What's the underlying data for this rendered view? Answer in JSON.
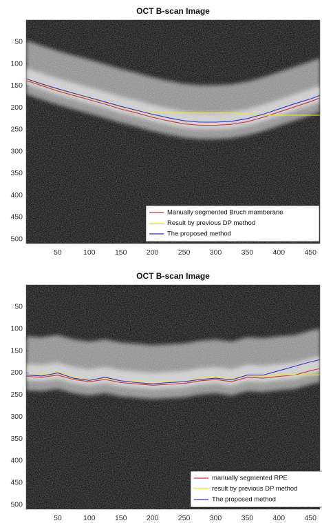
{
  "chart_data": [
    {
      "type": "line",
      "title": "OCT B-scan Image",
      "y_reversed": true,
      "x": [
        0,
        25,
        50,
        75,
        100,
        125,
        150,
        175,
        200,
        225,
        250,
        275,
        300,
        325,
        350,
        375,
        400,
        425,
        450,
        465
      ],
      "xlim": [
        0,
        465
      ],
      "ylim": [
        0,
        510
      ],
      "xticks": [
        50,
        100,
        150,
        200,
        250,
        300,
        350,
        400,
        450
      ],
      "yticks": [
        50,
        100,
        150,
        200,
        250,
        300,
        350,
        400,
        450,
        500
      ],
      "legend": "lower right",
      "series": [
        {
          "name": "Manually segmented Bruch mamberane",
          "color": "#d0303a",
          "values": [
            138,
            150,
            162,
            172,
            182,
            192,
            203,
            212,
            222,
            230,
            237,
            240,
            240,
            238,
            232,
            222,
            210,
            198,
            186,
            178
          ]
        },
        {
          "name": "Result by previous DP method",
          "color": "#e8e830",
          "values": [
            135,
            147,
            158,
            168,
            178,
            188,
            198,
            207,
            212,
            212,
            212,
            212,
            212,
            212,
            215,
            217,
            217,
            217,
            217,
            217
          ]
        },
        {
          "name": "The proposed method",
          "color": "#3030c8",
          "values": [
            134,
            146,
            157,
            167,
            177,
            187,
            197,
            206,
            215,
            223,
            230,
            233,
            233,
            231,
            225,
            215,
            203,
            191,
            180,
            172
          ]
        }
      ]
    },
    {
      "type": "line",
      "title": "OCT B-scan Image",
      "y_reversed": true,
      "x": [
        0,
        25,
        50,
        75,
        100,
        125,
        150,
        175,
        200,
        225,
        250,
        275,
        300,
        325,
        350,
        375,
        400,
        425,
        450,
        465
      ],
      "xlim": [
        0,
        465
      ],
      "ylim": [
        0,
        510
      ],
      "xticks": [
        50,
        100,
        150,
        200,
        250,
        300,
        350,
        400,
        450
      ],
      "yticks": [
        50,
        100,
        150,
        200,
        250,
        300,
        350,
        400,
        450,
        500
      ],
      "legend": "lower right",
      "series": [
        {
          "name": "manually segmented RPE",
          "color": "#d0303a",
          "values": [
            208,
            210,
            205,
            215,
            220,
            215,
            222,
            225,
            228,
            226,
            224,
            218,
            215,
            220,
            210,
            212,
            208,
            205,
            195,
            190
          ]
        },
        {
          "name": "result by previous DP method",
          "color": "#e8e830",
          "values": [
            205,
            205,
            198,
            210,
            216,
            212,
            218,
            220,
            222,
            220,
            220,
            212,
            210,
            214,
            205,
            208,
            205,
            205,
            205,
            205
          ]
        },
        {
          "name": "The proposed method",
          "color": "#3030c8",
          "values": [
            205,
            207,
            200,
            212,
            217,
            210,
            218,
            222,
            225,
            222,
            220,
            215,
            212,
            216,
            205,
            205,
            195,
            185,
            175,
            170
          ]
        }
      ]
    }
  ]
}
